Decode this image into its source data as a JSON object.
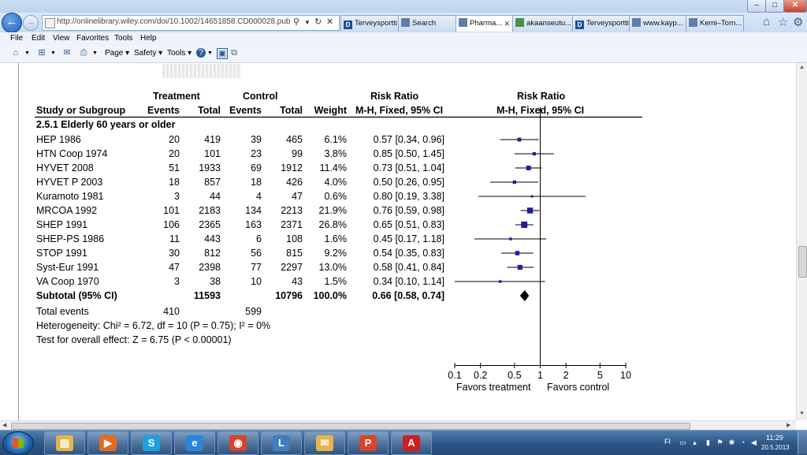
{
  "browser": {
    "url": "http://onlinelibrary.wiley.com/doi/10.1002/14651858.CD000028.pub2/figures",
    "tabs": [
      {
        "label": "Terveysportti",
        "icon": "d-logo-icon",
        "active": false
      },
      {
        "label": "Search",
        "icon": "page-icon",
        "active": false
      },
      {
        "label": "Pharma...",
        "icon": "page-icon",
        "active": true
      },
      {
        "label": "akaanseutu...",
        "icon": "globe-icon",
        "active": false
      },
      {
        "label": "Terveysportti",
        "icon": "d-logo-icon",
        "active": false
      },
      {
        "label": "www.kayp...",
        "icon": "page-icon",
        "active": false
      },
      {
        "label": "Kemi–Torn...",
        "icon": "page-icon",
        "active": false
      }
    ],
    "menu": [
      "File",
      "Edit",
      "View",
      "Favorites",
      "Tools",
      "Help"
    ],
    "command_bar": {
      "page": "Page",
      "safety": "Safety",
      "tools": "Tools"
    }
  },
  "forest_plot": {
    "headers": {
      "treatment": "Treatment",
      "control": "Control",
      "risk_ratio": "Risk Ratio",
      "risk_ratio_plot": "Risk Ratio",
      "study": "Study or Subgroup",
      "events": "Events",
      "total": "Total",
      "events_c": "Events",
      "total_c": "Total",
      "weight": "Weight",
      "method": "M-H, Fixed, 95% CI",
      "method_plot": "M-H, Fixed, 95% CI"
    },
    "subgroup_title": "2.5.1 Elderly 60 years or older",
    "studies": [
      {
        "name": "HEP 1986",
        "t_events": "20",
        "t_total": "419",
        "c_events": "39",
        "c_total": "465",
        "weight": "6.1%",
        "ci": "0.57 [0.34, 0.96]"
      },
      {
        "name": "HTN Coop 1974",
        "t_events": "20",
        "t_total": "101",
        "c_events": "23",
        "c_total": "99",
        "weight": "3.8%",
        "ci": "0.85 [0.50, 1.45]"
      },
      {
        "name": "HYVET 2008",
        "t_events": "51",
        "t_total": "1933",
        "c_events": "69",
        "c_total": "1912",
        "weight": "11.4%",
        "ci": "0.73 [0.51, 1.04]"
      },
      {
        "name": "HYVET P 2003",
        "t_events": "18",
        "t_total": "857",
        "c_events": "18",
        "c_total": "426",
        "weight": "4.0%",
        "ci": "0.50 [0.26, 0.95]"
      },
      {
        "name": "Kuramoto 1981",
        "t_events": "3",
        "t_total": "44",
        "c_events": "4",
        "c_total": "47",
        "weight": "0.6%",
        "ci": "0.80 [0.19, 3.38]"
      },
      {
        "name": "MRCOA 1992",
        "t_events": "101",
        "t_total": "2183",
        "c_events": "134",
        "c_total": "2213",
        "weight": "21.9%",
        "ci": "0.76 [0.59, 0.98]"
      },
      {
        "name": "SHEP 1991",
        "t_events": "106",
        "t_total": "2365",
        "c_events": "163",
        "c_total": "2371",
        "weight": "26.8%",
        "ci": "0.65 [0.51, 0.83]"
      },
      {
        "name": "SHEP-PS 1986",
        "t_events": "11",
        "t_total": "443",
        "c_events": "6",
        "c_total": "108",
        "weight": "1.6%",
        "ci": "0.45 [0.17, 1.18]"
      },
      {
        "name": "STOP 1991",
        "t_events": "30",
        "t_total": "812",
        "c_events": "56",
        "c_total": "815",
        "weight": "9.2%",
        "ci": "0.54 [0.35, 0.83]"
      },
      {
        "name": "Syst-Eur 1991",
        "t_events": "47",
        "t_total": "2398",
        "c_events": "77",
        "c_total": "2297",
        "weight": "13.0%",
        "ci": "0.58 [0.41, 0.84]"
      },
      {
        "name": "VA Coop 1970",
        "t_events": "3",
        "t_total": "38",
        "c_events": "10",
        "c_total": "43",
        "weight": "1.5%",
        "ci": "0.34 [0.10, 1.14]"
      }
    ],
    "subtotal": {
      "label": "Subtotal (95% CI)",
      "t_total": "11593",
      "c_total": "10796",
      "weight": "100.0%",
      "ci": "0.66 [0.58, 0.74]"
    },
    "total_events": {
      "label": "Total events",
      "t": "410",
      "c": "599"
    },
    "heterogeneity": "Heterogeneity: Chi² = 6.72, df = 10 (P = 0.75); I² = 0%",
    "overall_effect": "Test for overall effect: Z = 6.75 (P < 0.00001)",
    "axis_ticks": [
      "0.1",
      "0.2",
      "0.5",
      "1",
      "2",
      "5",
      "10"
    ],
    "favors_left": "Favors treatment",
    "favors_right": "Favors control"
  },
  "chart_data": {
    "type": "scatter",
    "x_scale": "log",
    "xlim": [
      0.1,
      10
    ],
    "ticks": [
      0.1,
      0.2,
      0.5,
      1,
      2,
      5,
      10
    ],
    "points": [
      {
        "label": "HEP 1986",
        "rr": 0.57,
        "lo": 0.34,
        "hi": 0.96,
        "weight": 6.1
      },
      {
        "label": "HTN Coop 1974",
        "rr": 0.85,
        "lo": 0.5,
        "hi": 1.45,
        "weight": 3.8
      },
      {
        "label": "HYVET 2008",
        "rr": 0.73,
        "lo": 0.51,
        "hi": 1.04,
        "weight": 11.4
      },
      {
        "label": "HYVET P 2003",
        "rr": 0.5,
        "lo": 0.26,
        "hi": 0.95,
        "weight": 4.0
      },
      {
        "label": "Kuramoto 1981",
        "rr": 0.8,
        "lo": 0.19,
        "hi": 3.38,
        "weight": 0.6
      },
      {
        "label": "MRCOA 1992",
        "rr": 0.76,
        "lo": 0.59,
        "hi": 0.98,
        "weight": 21.9
      },
      {
        "label": "SHEP 1991",
        "rr": 0.65,
        "lo": 0.51,
        "hi": 0.83,
        "weight": 26.8
      },
      {
        "label": "SHEP-PS 1986",
        "rr": 0.45,
        "lo": 0.17,
        "hi": 1.18,
        "weight": 1.6
      },
      {
        "label": "STOP 1991",
        "rr": 0.54,
        "lo": 0.35,
        "hi": 0.83,
        "weight": 9.2
      },
      {
        "label": "Syst-Eur 1991",
        "rr": 0.58,
        "lo": 0.41,
        "hi": 0.84,
        "weight": 13.0
      },
      {
        "label": "VA Coop 1970",
        "rr": 0.34,
        "lo": 0.1,
        "hi": 1.14,
        "weight": 1.5
      }
    ],
    "summary": {
      "label": "Subtotal (95% CI)",
      "rr": 0.66,
      "lo": 0.58,
      "hi": 0.74
    }
  },
  "taskbar": {
    "apps": [
      {
        "name": "explorer",
        "icon": "folder-icon",
        "glyph": "▤"
      },
      {
        "name": "media-player",
        "icon": "media-player-icon",
        "glyph": "▶"
      },
      {
        "name": "skype",
        "icon": "skype-icon",
        "glyph": "S"
      },
      {
        "name": "internet-explorer",
        "icon": "internet-explorer-icon",
        "glyph": "e"
      },
      {
        "name": "chrome",
        "icon": "chrome-icon",
        "glyph": "◉"
      },
      {
        "name": "office-app",
        "icon": "office-document-icon",
        "glyph": "L"
      },
      {
        "name": "outlook",
        "icon": "envelope-icon",
        "glyph": "✉"
      },
      {
        "name": "presentation",
        "icon": "presentation-icon",
        "glyph": "P"
      },
      {
        "name": "pdf-reader",
        "icon": "pdf-icon",
        "glyph": "A"
      }
    ],
    "language": "FI",
    "time": "11:29",
    "date": "20.5.2013"
  },
  "colors": {
    "marker": "#1f1f9e",
    "accent": "#2d5585"
  }
}
